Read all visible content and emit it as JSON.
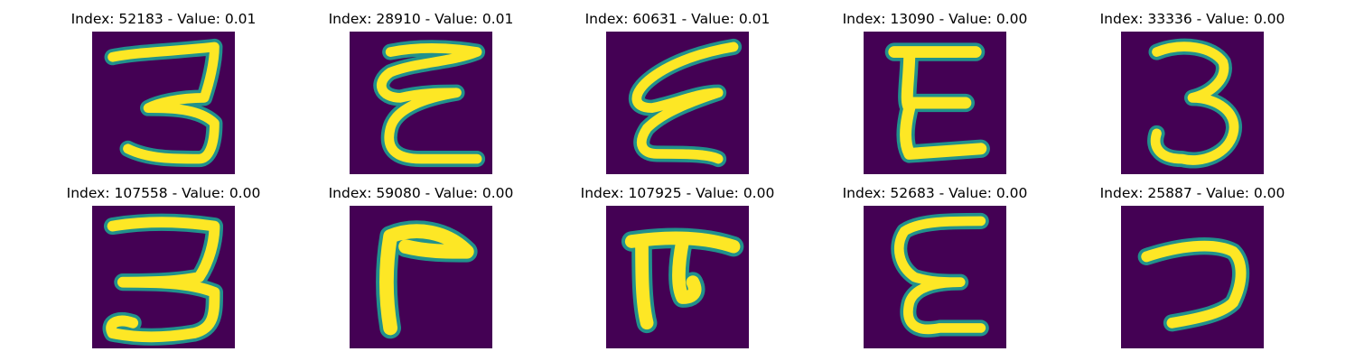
{
  "colors": {
    "background": "#440154",
    "stroke_core": "#fde725",
    "stroke_edge": "#21918c"
  },
  "panels": [
    {
      "title": "Index: 52183 - Value: 0.01",
      "glyph": "three-open-top"
    },
    {
      "title": "Index: 28910 - Value: 0.01",
      "glyph": "cursive-e"
    },
    {
      "title": "Index: 60631 - Value: 0.01",
      "glyph": "slanted-e"
    },
    {
      "title": "Index: 13090 - Value: 0.00",
      "glyph": "block-e"
    },
    {
      "title": "Index: 33336 - Value: 0.00",
      "glyph": "three-round"
    },
    {
      "title": "Index: 107558 - Value: 0.00",
      "glyph": "three-flat-top"
    },
    {
      "title": "Index: 59080 - Value: 0.00",
      "glyph": "corner-r"
    },
    {
      "title": "Index: 107925 - Value: 0.00",
      "glyph": "pi-shape"
    },
    {
      "title": "Index: 52683 - Value: 0.00",
      "glyph": "cursive-e-two"
    },
    {
      "title": "Index: 25887 - Value: 0.00",
      "glyph": "hook"
    }
  ]
}
